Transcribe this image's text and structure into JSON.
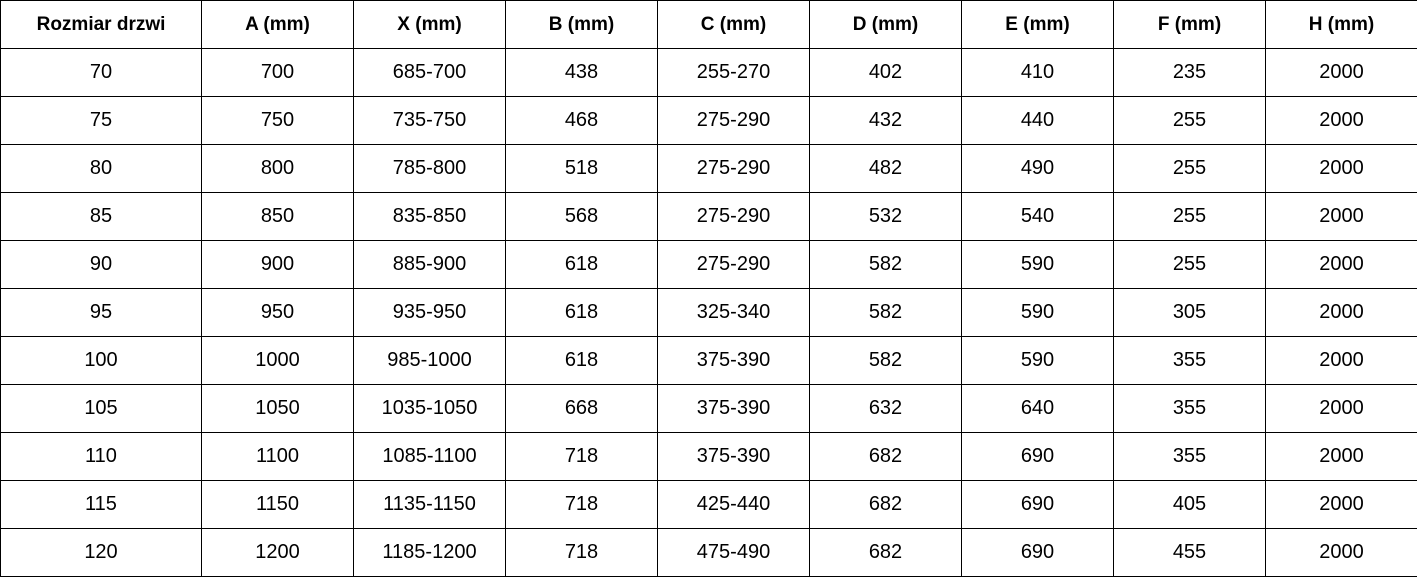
{
  "table": {
    "headers": [
      "Rozmiar drzwi",
      "A (mm)",
      "X (mm)",
      "B (mm)",
      "C (mm)",
      "D (mm)",
      "E (mm)",
      "F (mm)",
      "H (mm)"
    ],
    "rows": [
      [
        "70",
        "700",
        "685-700",
        "438",
        "255-270",
        "402",
        "410",
        "235",
        "2000"
      ],
      [
        "75",
        "750",
        "735-750",
        "468",
        "275-290",
        "432",
        "440",
        "255",
        "2000"
      ],
      [
        "80",
        "800",
        "785-800",
        "518",
        "275-290",
        "482",
        "490",
        "255",
        "2000"
      ],
      [
        "85",
        "850",
        "835-850",
        "568",
        "275-290",
        "532",
        "540",
        "255",
        "2000"
      ],
      [
        "90",
        "900",
        "885-900",
        "618",
        "275-290",
        "582",
        "590",
        "255",
        "2000"
      ],
      [
        "95",
        "950",
        "935-950",
        "618",
        "325-340",
        "582",
        "590",
        "305",
        "2000"
      ],
      [
        "100",
        "1000",
        "985-1000",
        "618",
        "375-390",
        "582",
        "590",
        "355",
        "2000"
      ],
      [
        "105",
        "1050",
        "1035-1050",
        "668",
        "375-390",
        "632",
        "640",
        "355",
        "2000"
      ],
      [
        "110",
        "1100",
        "1085-1100",
        "718",
        "375-390",
        "682",
        "690",
        "355",
        "2000"
      ],
      [
        "115",
        "1150",
        "1135-1150",
        "718",
        "425-440",
        "682",
        "690",
        "405",
        "2000"
      ],
      [
        "120",
        "1200",
        "1185-1200",
        "718",
        "475-490",
        "682",
        "690",
        "455",
        "2000"
      ]
    ]
  }
}
